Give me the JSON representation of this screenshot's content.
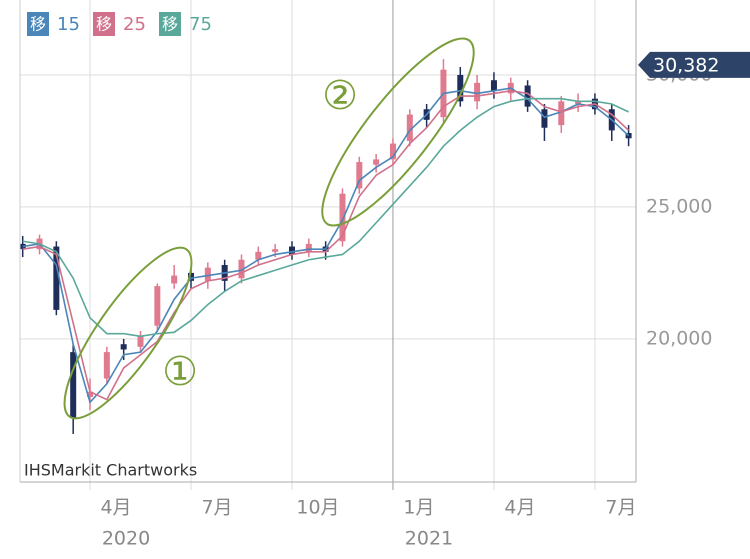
{
  "chart_data": {
    "type": "candlestick",
    "x": [
      1.0,
      1.5,
      2.0,
      2.5,
      3.0,
      3.5,
      4.0,
      4.5,
      5.0,
      5.5,
      6.0,
      6.5,
      7.0,
      7.5,
      8.0,
      8.5,
      9.0,
      9.5,
      10.0,
      10.5,
      11.0,
      11.5,
      12.0,
      12.5,
      13.0,
      13.5,
      14.0,
      14.5,
      15.0,
      15.5,
      16.0,
      16.5,
      17.0,
      17.5,
      18.0,
      18.5,
      19.0
    ],
    "open": [
      23600,
      23400,
      23500,
      19500,
      17800,
      18500,
      19800,
      19700,
      20500,
      22100,
      22500,
      22200,
      22800,
      22300,
      23000,
      23300,
      23500,
      23300,
      23500,
      23700,
      25700,
      26600,
      26800,
      27500,
      28700,
      28400,
      30000,
      29000,
      29800,
      29300,
      29600,
      28700,
      28100,
      28900,
      29100,
      28700,
      27800
    ],
    "high": [
      23900,
      23950,
      23700,
      19800,
      18500,
      19700,
      20000,
      20300,
      22100,
      22800,
      22700,
      22900,
      23000,
      23200,
      23500,
      23600,
      23700,
      23800,
      23700,
      25700,
      26900,
      27000,
      27600,
      28700,
      28900,
      30600,
      30300,
      30000,
      30100,
      29900,
      29800,
      28900,
      29200,
      29300,
      29300,
      28900,
      28100
    ],
    "low": [
      23100,
      23200,
      20900,
      16400,
      17300,
      18300,
      19200,
      19500,
      20300,
      21900,
      21900,
      21900,
      21800,
      22100,
      22800,
      23100,
      23000,
      23100,
      23000,
      23500,
      25500,
      26300,
      26600,
      27300,
      28000,
      28200,
      28800,
      28700,
      29100,
      29000,
      28600,
      27500,
      27800,
      28600,
      28500,
      27500,
      27300
    ],
    "close": [
      23400,
      23800,
      21100,
      17000,
      18000,
      19500,
      19600,
      20100,
      22000,
      22400,
      22200,
      22700,
      22200,
      23000,
      23300,
      23400,
      23200,
      23600,
      23300,
      25500,
      26700,
      26800,
      27400,
      28500,
      28300,
      30200,
      29000,
      29700,
      29400,
      29700,
      28800,
      28000,
      29000,
      29000,
      28700,
      27900,
      27600
    ],
    "up_color": "#e07a8e",
    "down_color": "#1f2d5a",
    "series": [
      {
        "name": "移",
        "period": 15,
        "color": "#4a86b8",
        "values": [
          23500,
          23600,
          22800,
          19800,
          17600,
          18300,
          19400,
          19500,
          20300,
          21500,
          22300,
          22400,
          22500,
          22600,
          23000,
          23200,
          23300,
          23400,
          23400,
          24500,
          26000,
          26500,
          26900,
          27900,
          28500,
          29300,
          29400,
          29300,
          29400,
          29500,
          29100,
          28400,
          28600,
          28900,
          28800,
          28300,
          27700
        ]
      },
      {
        "name": "移",
        "period": 25,
        "color": "#d0708a",
        "values": [
          23400,
          23500,
          23200,
          20600,
          18000,
          17700,
          18900,
          19400,
          19900,
          21000,
          21900,
          22200,
          22300,
          22500,
          22800,
          23000,
          23200,
          23300,
          23300,
          23900,
          25400,
          26200,
          26600,
          27400,
          28000,
          28800,
          29200,
          29200,
          29300,
          29400,
          29300,
          28800,
          28600,
          28800,
          28900,
          28500,
          27900
        ]
      },
      {
        "name": "移",
        "period": 75,
        "color": "#5aa89a",
        "values": [
          23700,
          23600,
          23300,
          22300,
          20800,
          20200,
          20200,
          20100,
          20200,
          20250,
          20700,
          21300,
          21800,
          22200,
          22400,
          22600,
          22800,
          23000,
          23100,
          23200,
          23700,
          24400,
          25100,
          25800,
          26500,
          27300,
          27900,
          28400,
          28800,
          29000,
          29100,
          29100,
          29100,
          29000,
          29000,
          28900,
          28600
        ]
      }
    ],
    "xlim": [
      0.92,
      19.22
    ],
    "xticks": [
      {
        "value": 3,
        "label": "4月"
      },
      {
        "value": 6,
        "label": "7月"
      },
      {
        "value": 9,
        "label": "10月"
      },
      {
        "value": 12,
        "label": "1月"
      },
      {
        "value": 15,
        "label": "4月"
      },
      {
        "value": 18,
        "label": "7月"
      }
    ],
    "year_labels": [
      {
        "value": 3,
        "label": "2020"
      },
      {
        "value": 12,
        "label": "2021"
      }
    ],
    "ylim": [
      14580,
      32460
    ],
    "yticks": [
      {
        "value": 20000,
        "label": "20,000"
      },
      {
        "value": 25000,
        "label": "25,000"
      },
      {
        "value": 30000,
        "label": "30,000"
      }
    ],
    "last_price": {
      "value": 30382,
      "label": "30,382"
    },
    "annotations": [
      "①",
      "②"
    ],
    "source": "IHSMarkit Chartworks"
  }
}
